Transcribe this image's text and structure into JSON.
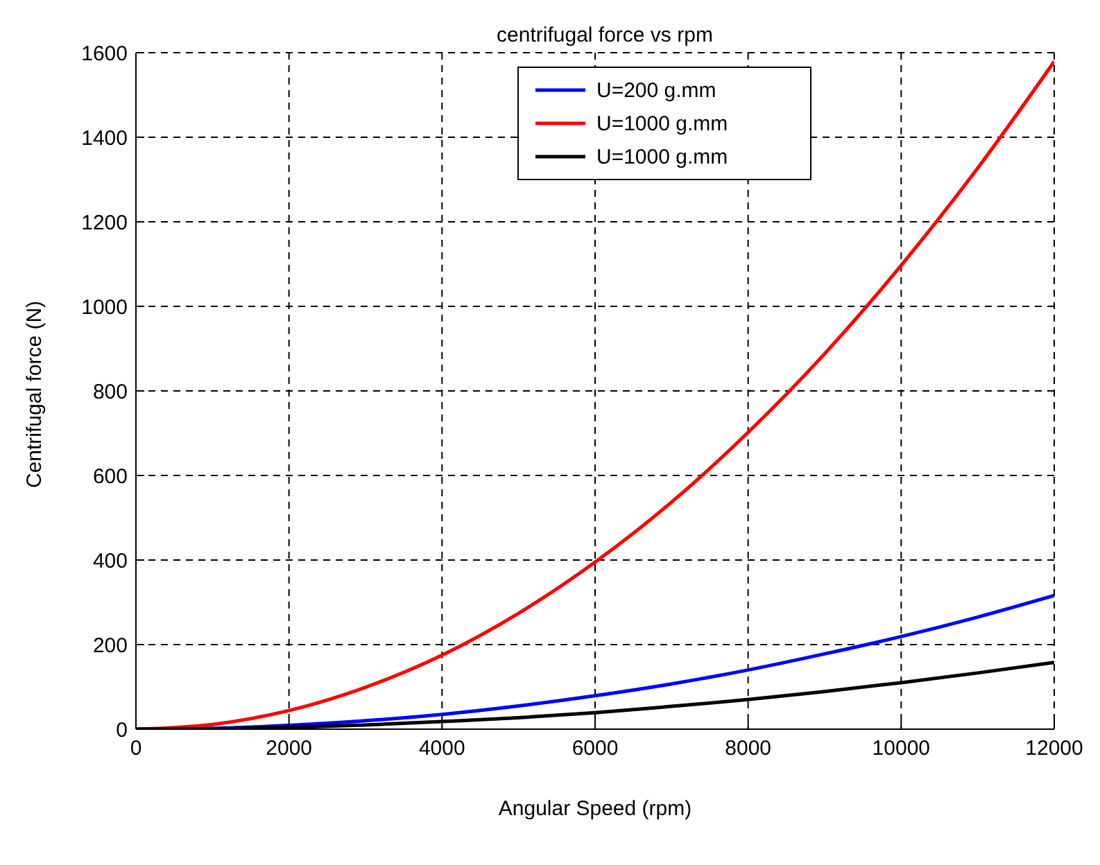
{
  "chart_data": {
    "type": "line",
    "title": "centrifugal force vs rpm",
    "xlabel": "Angular Speed (rpm)",
    "ylabel": "Centrifugal force (N)",
    "x": [
      0,
      1000,
      2000,
      3000,
      4000,
      5000,
      6000,
      7000,
      8000,
      9000,
      10000,
      11000,
      12000
    ],
    "series": [
      {
        "name": "U=200 g.mm",
        "color": "#0000ff",
        "values": [
          0,
          2,
          9,
          20,
          35,
          55,
          79,
          107,
          140,
          178,
          219,
          265,
          316
        ]
      },
      {
        "name": "U=1000 g.mm",
        "color": "#ff0000",
        "values": [
          0,
          11,
          44,
          99,
          175,
          274,
          395,
          537,
          702,
          888,
          1097,
          1327,
          1579
        ]
      },
      {
        "name": "U=1000 g.mm",
        "color": "#000000",
        "values": [
          0,
          1,
          4,
          10,
          18,
          27,
          39,
          54,
          70,
          89,
          110,
          133,
          158
        ]
      }
    ],
    "xlim": [
      0,
      12000
    ],
    "xticks": [
      0,
      2000,
      4000,
      6000,
      8000,
      10000,
      12000
    ],
    "ylim": [
      0,
      1600
    ],
    "yticks": [
      0,
      200,
      400,
      600,
      800,
      1000,
      1200,
      1400,
      1600
    ],
    "grid": true,
    "legend": "top right",
    "marker": "none",
    "line_style": "solid"
  }
}
